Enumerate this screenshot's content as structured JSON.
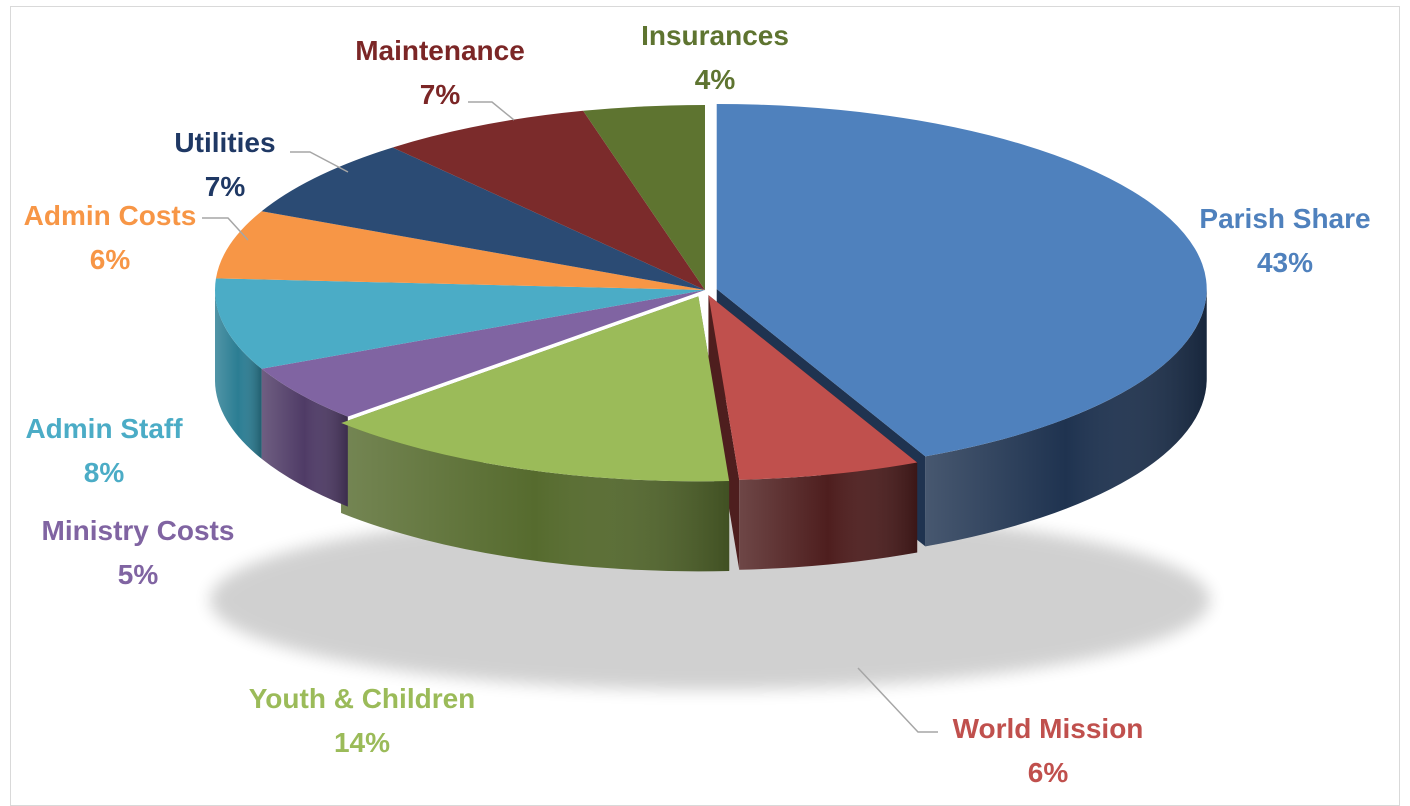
{
  "chart_data": {
    "type": "pie",
    "title": "",
    "style": "3d-exploded-pie",
    "slices": [
      {
        "label": "Parish Share",
        "pct_label": "43%",
        "value": 43,
        "color": "#4f81bd",
        "side": "#1f3350"
      },
      {
        "label": "World Mission",
        "pct_label": "6%",
        "value": 6,
        "color": "#c0504d",
        "side": "#4e1e1e"
      },
      {
        "label": "Youth & Children",
        "pct_label": "14%",
        "value": 14,
        "color": "#9bbb59",
        "side": "#566b2e"
      },
      {
        "label": "Ministry Costs",
        "pct_label": "5%",
        "value": 5,
        "color": "#8064a2",
        "side": "#4f3b66"
      },
      {
        "label": "Admin Staff",
        "pct_label": "8%",
        "value": 8,
        "color": "#4bacc6",
        "side": "#2b7d93"
      },
      {
        "label": "Admin Costs",
        "pct_label": "6%",
        "value": 6,
        "color": "#f79646",
        "side": "#a85e20"
      },
      {
        "label": "Utilities",
        "pct_label": "7%",
        "value": 7,
        "color": "#2b4b74",
        "side": "#182c45"
      },
      {
        "label": "Maintenance",
        "pct_label": "7%",
        "value": 7,
        "color": "#7b2b2b",
        "side": "#4a1818"
      },
      {
        "label": "Insurances",
        "pct_label": "4%",
        "value": 4,
        "color": "#5e7430",
        "side": "#3a4a1d"
      }
    ],
    "label_colors": {
      "Parish Share": "#4f81bd",
      "World Mission": "#c0504d",
      "Youth & Children": "#9bbb59",
      "Ministry Costs": "#8064a2",
      "Admin Staff": "#4bacc6",
      "Admin Costs": "#f79646",
      "Utilities": "#1f3864",
      "Maintenance": "#7b2626",
      "Insurances": "#5e7430"
    },
    "legend": "none"
  }
}
